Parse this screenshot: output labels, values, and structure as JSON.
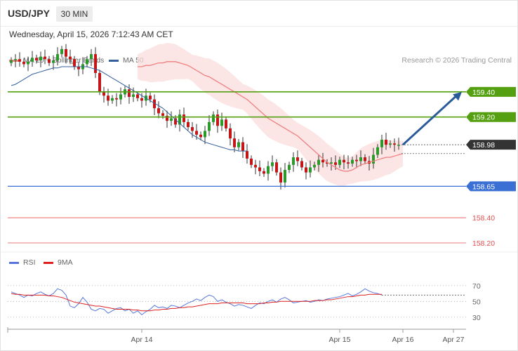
{
  "header": {
    "symbol": "USD/JPY",
    "timeframe": "30 MIN",
    "timestamp": "Wednesday, April 15, 2026 7:12:43 AM CET"
  },
  "legend": {
    "ma20_label": "MA 20 + Bollinger Bands",
    "ma50_label": "MA 50",
    "copyright": "Research © 2026 Trading Central"
  },
  "rsi_legend": {
    "rsi_label": "RSI",
    "ma9_label": "9MA"
  },
  "colors": {
    "up": "#2b9a2b",
    "down": "#c41616",
    "ma20": "#f08080",
    "ma50": "#335f9c",
    "resistance": "#55a011",
    "support": "#3a6fd3",
    "support_minor": "#e05050",
    "arrow": "#2a5a9a",
    "rsi": "#5577dd",
    "rsi_ma": "#dd2222"
  },
  "chart_data": {
    "type": "candlestick",
    "ylim": [
      158.15,
      159.6
    ],
    "last_price": "158.98",
    "levels": [
      {
        "value": 159.4,
        "label": "159.40",
        "kind": "resistance"
      },
      {
        "value": 159.2,
        "label": "159.20",
        "kind": "resistance"
      },
      {
        "value": 158.98,
        "label": "158.98",
        "kind": "last"
      },
      {
        "value": 158.65,
        "label": "158.65",
        "kind": "support"
      },
      {
        "value": 158.4,
        "label": "158.40",
        "kind": "support_minor"
      },
      {
        "value": 158.2,
        "label": "158.20",
        "kind": "support_minor"
      }
    ],
    "forecast": {
      "from": 158.98,
      "to": 159.4
    },
    "x_ticks": [
      {
        "label": "Apr 14",
        "bar": 31
      },
      {
        "label": "Apr 15",
        "bar": 78
      },
      {
        "label": "Apr 16",
        "bar": 93
      },
      {
        "label": "Apr 27",
        "bar": 105
      }
    ],
    "closes": [
      159.65,
      159.66,
      159.64,
      159.62,
      159.64,
      159.67,
      159.65,
      159.68,
      159.66,
      159.63,
      159.65,
      159.7,
      159.74,
      159.68,
      159.66,
      159.6,
      159.58,
      159.62,
      159.66,
      159.7,
      159.55,
      159.4,
      159.37,
      159.33,
      159.35,
      159.34,
      159.38,
      159.42,
      159.36,
      159.38,
      159.35,
      159.33,
      159.37,
      159.34,
      159.27,
      159.23,
      159.21,
      159.17,
      159.19,
      159.14,
      159.22,
      159.16,
      159.12,
      159.09,
      159.06,
      159.04,
      159.09,
      159.16,
      159.22,
      159.13,
      159.18,
      159.11,
      159.03,
      158.96,
      159.0,
      158.93,
      158.87,
      158.82,
      158.8,
      158.77,
      158.75,
      158.81,
      158.84,
      158.76,
      158.68,
      158.78,
      158.82,
      158.88,
      158.85,
      158.8,
      158.76,
      158.8,
      158.82,
      158.86,
      158.84,
      158.83,
      158.84,
      158.82,
      158.86,
      158.84,
      158.83,
      158.86,
      158.85,
      158.88,
      158.85,
      158.83,
      158.9,
      158.96,
      159.02,
      158.98,
      158.99,
      158.98,
      158.98
    ],
    "ma20": [
      159.6,
      159.6,
      159.61,
      159.61,
      159.62,
      159.63,
      159.63,
      159.64,
      159.64,
      159.64,
      159.63,
      159.62,
      159.61,
      159.59,
      159.57,
      159.55,
      159.53,
      159.52,
      159.5,
      159.48,
      159.46,
      159.44,
      159.42,
      159.4,
      159.38,
      159.36,
      159.34,
      159.31,
      159.28,
      159.25,
      159.22,
      159.19,
      159.17,
      159.15,
      159.13,
      159.11,
      159.09,
      159.07,
      159.05,
      159.02,
      158.99,
      158.96,
      158.93,
      158.9,
      158.87,
      158.84,
      158.82,
      158.8,
      158.78,
      158.77,
      158.77,
      158.78,
      158.8,
      158.82,
      158.83,
      158.84,
      158.85,
      158.86,
      158.87,
      158.88,
      158.88,
      158.89,
      158.9,
      158.91
    ],
    "ma20_start": 30,
    "ma50": [
      159.45,
      159.46,
      159.48,
      159.5,
      159.52,
      159.54,
      159.55,
      159.56,
      159.57,
      159.58,
      159.59,
      159.59,
      159.6,
      159.6,
      159.6,
      159.6,
      159.6,
      159.6,
      159.6,
      159.59,
      159.58,
      159.57,
      159.55,
      159.53,
      159.51,
      159.49,
      159.47,
      159.45,
      159.43,
      159.41,
      159.39,
      159.37,
      159.35,
      159.33,
      159.31,
      159.29,
      159.27,
      159.24,
      159.21,
      159.18,
      159.15,
      159.12,
      159.09,
      159.06,
      159.04,
      159.02,
      159.0,
      158.99,
      158.98,
      158.97,
      158.96,
      158.95,
      158.94,
      158.94,
      158.93,
      158.93,
      158.93
    ],
    "ma50_start": 0,
    "rsi": {
      "ylim": [
        20,
        85
      ],
      "ticks": [
        70,
        50,
        30
      ],
      "rsi": [
        62,
        60,
        58,
        55,
        58,
        57,
        60,
        62,
        59,
        57,
        60,
        66,
        64,
        58,
        44,
        42,
        47,
        55,
        49,
        40,
        38,
        41,
        40,
        35,
        38,
        41,
        42,
        38,
        40,
        35,
        38,
        33,
        37,
        40,
        45,
        42,
        43,
        41,
        45,
        44,
        42,
        45,
        48,
        50,
        53,
        51,
        55,
        58,
        56,
        50,
        52,
        49,
        47,
        44,
        46,
        45,
        43,
        41,
        45,
        48,
        47,
        50,
        52,
        49,
        53,
        55,
        52,
        48,
        49,
        50,
        51,
        49,
        50,
        52,
        51,
        53,
        54,
        55,
        56,
        58,
        60,
        57,
        59,
        62,
        66,
        63,
        61,
        60,
        58
      ],
      "ma": [
        60,
        59,
        59,
        58,
        58,
        58,
        58,
        58,
        58,
        57,
        57,
        56,
        55,
        53,
        51,
        49,
        48,
        47,
        46,
        45,
        44,
        44,
        43,
        42,
        41,
        40,
        40,
        40,
        40,
        39,
        39,
        38,
        38,
        38,
        39,
        39,
        40,
        40,
        41,
        41,
        42,
        42,
        43,
        43,
        44,
        45,
        46,
        47,
        47,
        47,
        48,
        48,
        48,
        48,
        48,
        48,
        47,
        47,
        47,
        47,
        48,
        48,
        49,
        49,
        50,
        50,
        50,
        50,
        50,
        50,
        50,
        50,
        51,
        51,
        51,
        52,
        52,
        53,
        54,
        55,
        56,
        56,
        57,
        58,
        58,
        59,
        59,
        59,
        59
      ]
    }
  }
}
